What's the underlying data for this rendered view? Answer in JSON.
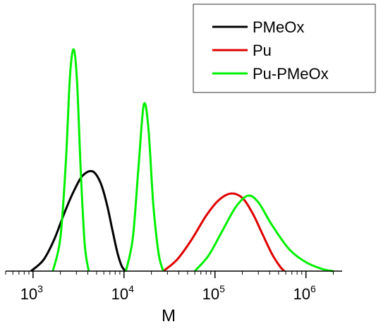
{
  "chart_data": {
    "type": "line",
    "xlabel": "M",
    "ylabel": "",
    "x_scale": "log",
    "xlim": [
      500,
      2500000
    ],
    "ylim": [
      0,
      1
    ],
    "grid": false,
    "legend_position": "top-right",
    "x_ticks": [
      {
        "base": "10",
        "exp": "3",
        "value": 1000
      },
      {
        "base": "10",
        "exp": "4",
        "value": 10000
      },
      {
        "base": "10",
        "exp": "5",
        "value": 100000
      },
      {
        "base": "10",
        "exp": "6",
        "value": 1000000
      }
    ],
    "series": [
      {
        "name": "PMeOx",
        "color": "#000000",
        "points": [
          [
            950,
            0.0
          ],
          [
            1300,
            0.05
          ],
          [
            1700,
            0.14
          ],
          [
            2200,
            0.26
          ],
          [
            2800,
            0.36
          ],
          [
            3500,
            0.43
          ],
          [
            4500,
            0.45
          ],
          [
            5500,
            0.4
          ],
          [
            6500,
            0.3
          ],
          [
            7500,
            0.18
          ],
          [
            8500,
            0.08
          ],
          [
            9500,
            0.02
          ],
          [
            10500,
            0.0
          ]
        ]
      },
      {
        "name": "Pu",
        "color": "#e00000",
        "points": [
          [
            27000,
            0.0
          ],
          [
            38000,
            0.05
          ],
          [
            55000,
            0.14
          ],
          [
            80000,
            0.25
          ],
          [
            110000,
            0.32
          ],
          [
            150000,
            0.35
          ],
          [
            200000,
            0.33
          ],
          [
            260000,
            0.26
          ],
          [
            330000,
            0.17
          ],
          [
            420000,
            0.08
          ],
          [
            520000,
            0.02
          ],
          [
            580000,
            0.0
          ]
        ]
      },
      {
        "name": "Pu-PMeOx",
        "color": "#00f000",
        "segments": [
          [
            [
              1650,
              0.0
            ],
            [
              2000,
              0.15
            ],
            [
              2300,
              0.5
            ],
            [
              2550,
              0.88
            ],
            [
              2800,
              1.0
            ],
            [
              3050,
              0.85
            ],
            [
              3350,
              0.45
            ],
            [
              3700,
              0.12
            ],
            [
              4100,
              0.0
            ]
          ],
          [
            [
              10500,
              0.0
            ],
            [
              12500,
              0.15
            ],
            [
              14500,
              0.48
            ],
            [
              16500,
              0.75
            ],
            [
              18500,
              0.65
            ],
            [
              21000,
              0.3
            ],
            [
              24000,
              0.08
            ],
            [
              27000,
              0.0
            ]
          ],
          [
            [
              60000,
              0.0
            ],
            [
              85000,
              0.07
            ],
            [
              120000,
              0.18
            ],
            [
              170000,
              0.29
            ],
            [
              230000,
              0.34
            ],
            [
              300000,
              0.31
            ],
            [
              420000,
              0.21
            ],
            [
              650000,
              0.1
            ],
            [
              1000000,
              0.04
            ],
            [
              1500000,
              0.01
            ],
            [
              2000000,
              0.0
            ]
          ]
        ]
      }
    ]
  }
}
